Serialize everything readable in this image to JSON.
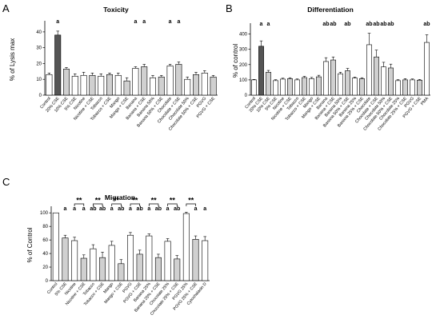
{
  "chart_data": [
    {
      "panel": "A",
      "type": "bar",
      "title": "Toxicity",
      "ylabel": "% of Lysis max",
      "ylim": [
        0,
        45
      ],
      "yticks": [
        0,
        10,
        20,
        30,
        40
      ],
      "categories": [
        "Control",
        "20% CSE",
        "10% CSE",
        "5% CSE",
        "Nicotine",
        "Nicotine + CSE",
        "Tobacco",
        "Tobacco + CSE",
        "Mango",
        "Mango + CSE",
        "Banana",
        "Banana + CSE",
        "Banana 50%",
        "Banana 50% + CSE",
        "Chocolate",
        "Chocolate + CSE",
        "Chocolate 50%",
        "Chocolate 50% + CSE",
        "PGVG",
        "PGVG + CSE"
      ],
      "values": [
        13,
        38,
        16.5,
        12,
        12.5,
        12.5,
        12,
        13,
        12.5,
        9,
        17,
        18,
        11,
        11.5,
        18.5,
        19.5,
        10,
        13,
        14,
        11.5
      ],
      "errors": [
        1,
        2.5,
        1,
        1.5,
        2,
        1.5,
        1.5,
        1,
        1.5,
        2,
        1,
        1.5,
        1.5,
        1,
        1,
        1.5,
        1.5,
        1.5,
        1.5,
        1
      ],
      "fills": [
        "#ffffff",
        "#555555",
        "#d0d0d0",
        "#ffffff",
        "#ffffff",
        "#d0d0d0",
        "#ffffff",
        "#d0d0d0",
        "#ffffff",
        "#d0d0d0",
        "#ffffff",
        "#d0d0d0",
        "#ffffff",
        "#d0d0d0",
        "#ffffff",
        "#d0d0d0",
        "#ffffff",
        "#d0d0d0",
        "#ffffff",
        "#d0d0d0"
      ],
      "sig_letters": [
        "",
        "a",
        "",
        "",
        "",
        "",
        "",
        "",
        "",
        "",
        "a",
        "a",
        "",
        "",
        "a",
        "a",
        "",
        "",
        "",
        ""
      ]
    },
    {
      "panel": "B",
      "type": "bar",
      "title": "Differentiation",
      "ylabel": "% of control",
      "ylim": [
        0,
        450
      ],
      "yticks": [
        0,
        100,
        200,
        300,
        400
      ],
      "categories": [
        "Control",
        "20% CSE",
        "10% CSE",
        "5% CSE",
        "Nicotine",
        "Nicotine + CSE",
        "Tobacco",
        "Tobacco + CSE",
        "Mango",
        "Mango + CSE",
        "Banana",
        "Banana + CSE",
        "Banana 50%",
        "Banana 50% + CSE",
        "Banana 25%",
        "Banana 25% + CSE",
        "Chocolate",
        "Chocolate + CSE",
        "Chocolate 50%",
        "Chocolate 50% + CSE",
        "Chocolate 25%",
        "Chocolate 25% + CSE",
        "PGVG",
        "PGVG + CSE",
        "PMA"
      ],
      "values": [
        100,
        320,
        150,
        95,
        105,
        108,
        100,
        115,
        108,
        120,
        220,
        230,
        140,
        160,
        112,
        108,
        330,
        250,
        185,
        178,
        95,
        100,
        100,
        98,
        345
      ],
      "errors": [
        3,
        35,
        12,
        6,
        6,
        6,
        6,
        8,
        8,
        10,
        25,
        20,
        10,
        15,
        6,
        6,
        75,
        45,
        30,
        25,
        6,
        8,
        6,
        5,
        50
      ],
      "fills": [
        "#ffffff",
        "#555555",
        "#d0d0d0",
        "#ffffff",
        "#ffffff",
        "#d0d0d0",
        "#ffffff",
        "#d0d0d0",
        "#ffffff",
        "#d0d0d0",
        "#ffffff",
        "#d0d0d0",
        "#ffffff",
        "#d0d0d0",
        "#ffffff",
        "#d0d0d0",
        "#ffffff",
        "#d0d0d0",
        "#ffffff",
        "#d0d0d0",
        "#ffffff",
        "#d0d0d0",
        "#ffffff",
        "#d0d0d0",
        "#ffffff"
      ],
      "sig_letters": [
        "",
        "a",
        "a",
        "",
        "",
        "",
        "",
        "",
        "",
        "",
        "ab",
        "ab",
        "",
        "ab",
        "",
        "",
        "ab",
        "ab",
        "ab",
        "ab",
        "",
        "",
        "",
        "",
        "ab"
      ]
    },
    {
      "panel": "C",
      "type": "bar",
      "title": "Migration",
      "ylabel": "% of Control",
      "ylim": [
        0,
        105
      ],
      "yticks": [
        0,
        20,
        40,
        60,
        80,
        100
      ],
      "categories": [
        "Control",
        "5% CSE",
        "Nicotine",
        "Nicotine + CSE",
        "Tobacco",
        "Tobacco + CSE",
        "Mango",
        "Mango + CSE",
        "PGVG",
        "PGVG + CSE",
        "Banana 25%",
        "Banana 25% + CSE",
        "Chocolate 25%",
        "Chocolate 25% + CSE",
        "PGVG 25%",
        "PGVG 25% + CSE",
        "Cytochalasin D"
      ],
      "values": [
        100,
        63,
        59,
        33,
        47,
        34,
        52,
        25,
        67,
        39,
        66,
        34,
        58,
        32,
        99,
        61,
        59
      ],
      "errors": [
        0,
        4,
        5,
        5,
        6,
        8,
        6,
        6,
        4,
        6,
        3,
        5,
        4,
        5,
        2,
        5,
        6
      ],
      "fills": [
        "#ffffff",
        "#d0d0d0",
        "#ffffff",
        "#d0d0d0",
        "#ffffff",
        "#d0d0d0",
        "#ffffff",
        "#d0d0d0",
        "#ffffff",
        "#d0d0d0",
        "#ffffff",
        "#d0d0d0",
        "#ffffff",
        "#d0d0d0",
        "#ffffff",
        "#d0d0d0",
        "#ffffff"
      ],
      "sig_letters": [
        "",
        "a",
        "a",
        "a",
        "ab",
        "ab",
        "a",
        "ab",
        "a",
        "ab",
        "a",
        "ab",
        "a",
        "ab",
        "",
        "a",
        "a"
      ],
      "brackets": [
        {
          "from": 2,
          "to": 3,
          "label": "**"
        },
        {
          "from": 4,
          "to": 5,
          "label": "**"
        },
        {
          "from": 6,
          "to": 7,
          "label": "**"
        },
        {
          "from": 8,
          "to": 9,
          "label": "**"
        },
        {
          "from": 10,
          "to": 11,
          "label": "**"
        },
        {
          "from": 12,
          "to": 13,
          "label": "**"
        },
        {
          "from": 14,
          "to": 15,
          "label": "**"
        }
      ]
    }
  ]
}
